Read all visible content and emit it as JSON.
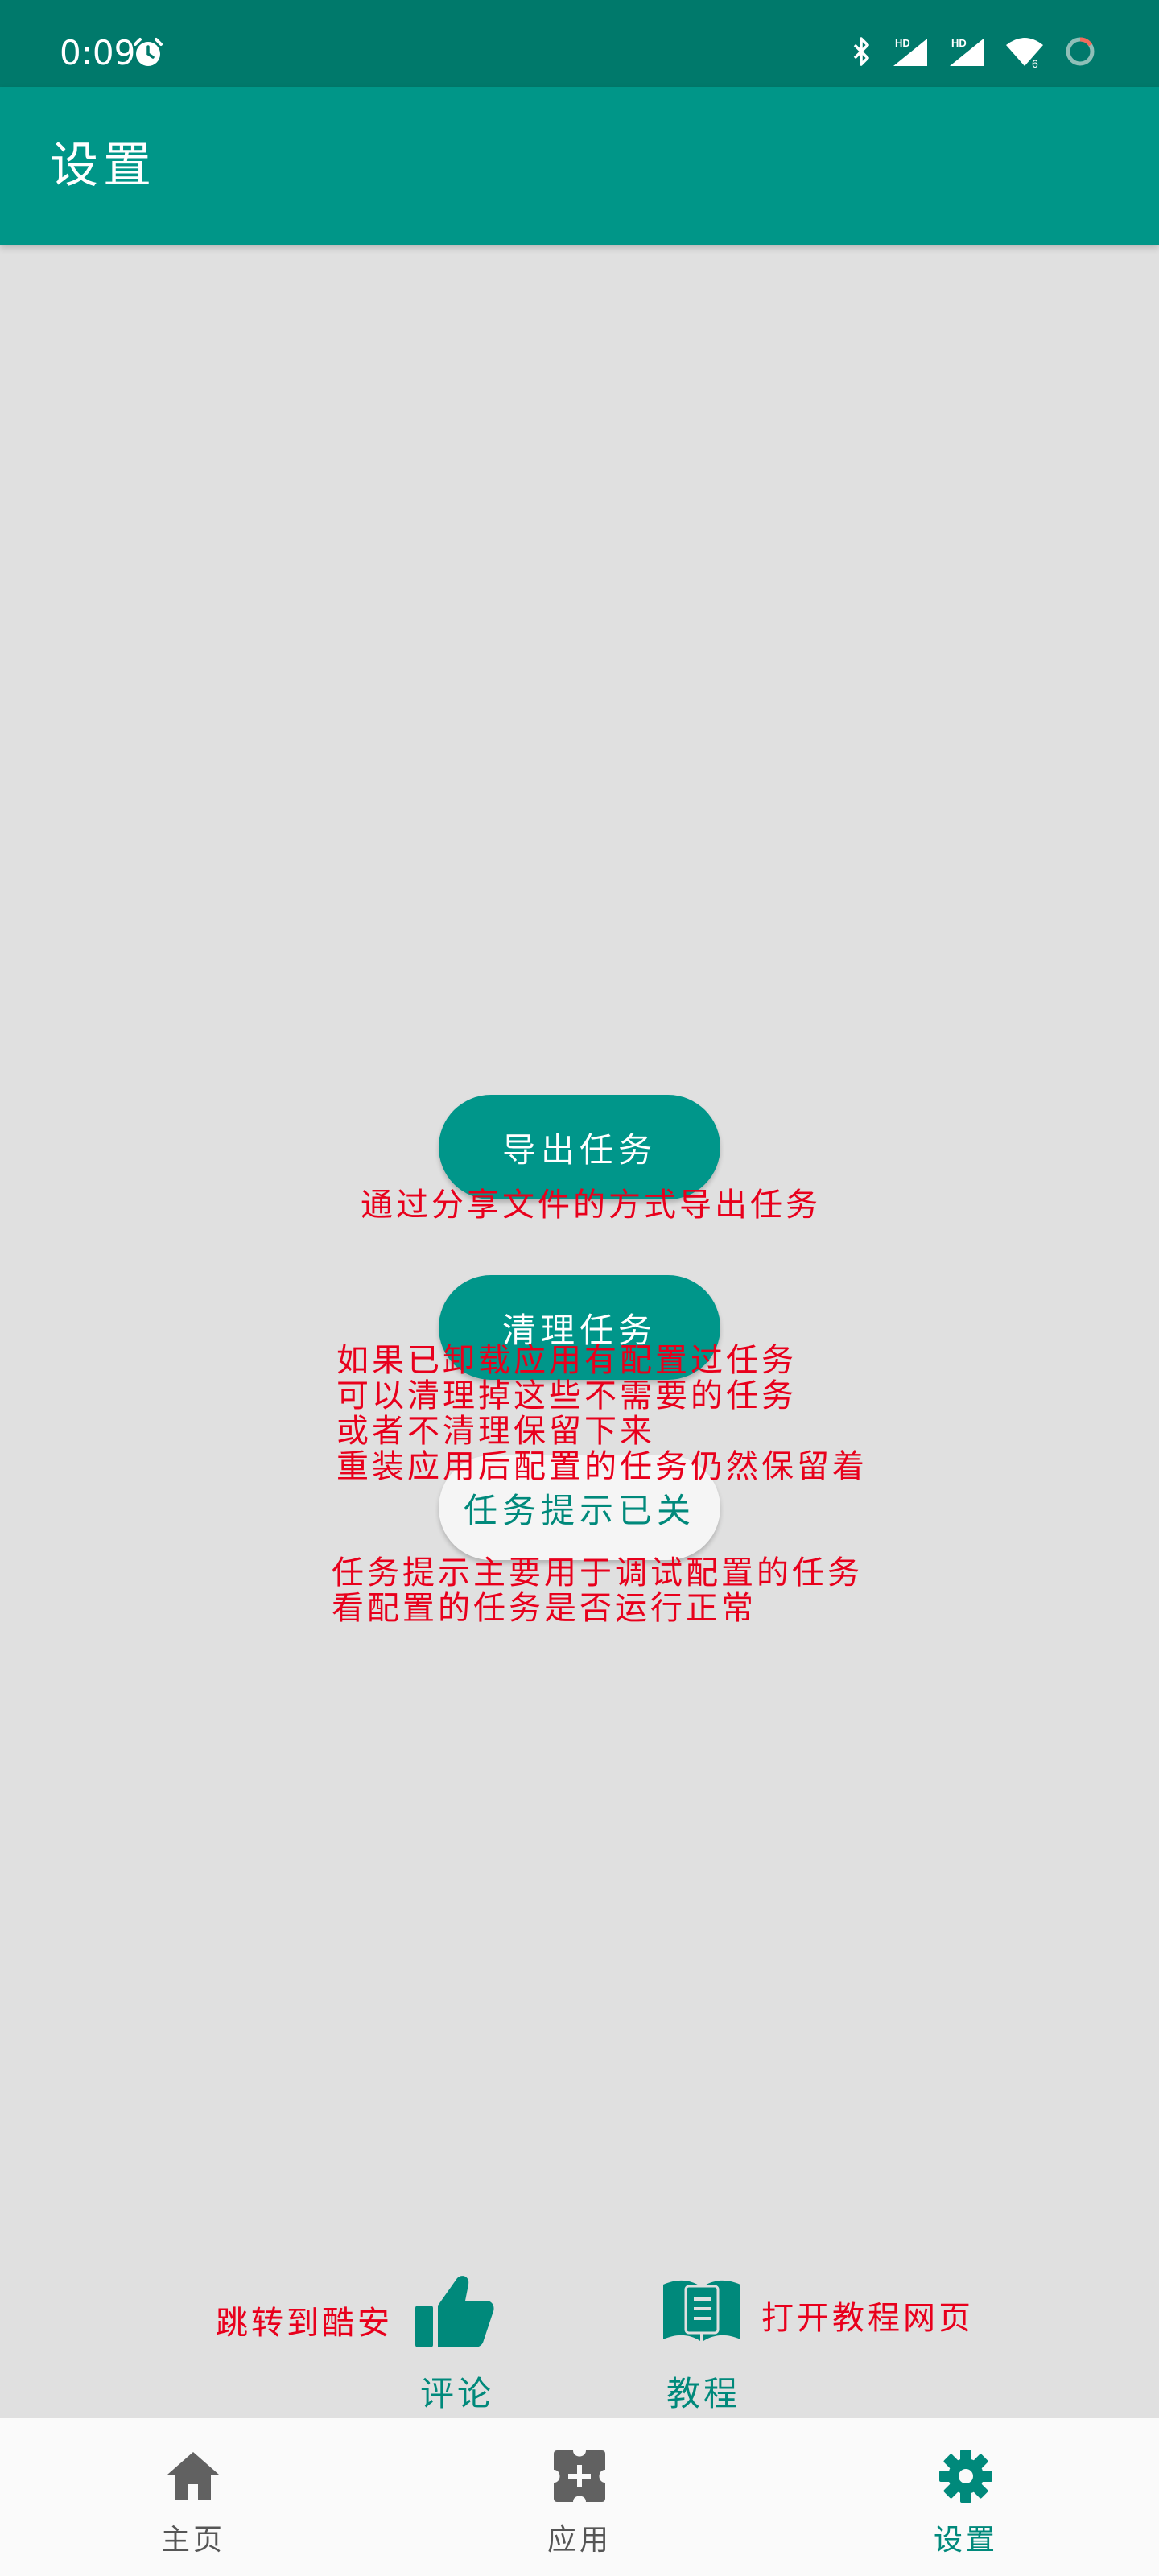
{
  "status_bar": {
    "time": "0:09",
    "icons": [
      "alarm-icon",
      "bluetooth-icon",
      "hd-signal-icon",
      "hd-signal-icon",
      "wifi-icon",
      "battery-ring-icon"
    ],
    "wifi_badge": "6"
  },
  "app_bar": {
    "title": "设置"
  },
  "buttons": {
    "export": "导出任务",
    "clear": "清理任务",
    "hint": "任务提示已关"
  },
  "notes": {
    "export": "通过分享文件的方式导出任务",
    "clear": "如果已卸载应用有配置过任务\n可以清理掉这些不需要的任务\n或者不清理保留下来\n重装应用后配置的任务仍然保留着",
    "hint": "任务提示主要用于调试配置的任务\n看配置的任务是否运行正常"
  },
  "actions": {
    "review_note": "跳转到酷安",
    "review_label": "评论",
    "tutorial_note": "打开教程网页",
    "tutorial_label": "教程"
  },
  "bottom_nav": {
    "items": [
      {
        "label": "主页",
        "icon": "home-icon",
        "active": false
      },
      {
        "label": "应用",
        "icon": "puzzle-icon",
        "active": false
      },
      {
        "label": "设置",
        "icon": "gear-icon",
        "active": true
      }
    ]
  },
  "colors": {
    "status_bar": "#00796b",
    "primary": "#009688",
    "accent_text": "#00897b",
    "annotation": "#e8001c",
    "background": "#e0e0e0"
  }
}
